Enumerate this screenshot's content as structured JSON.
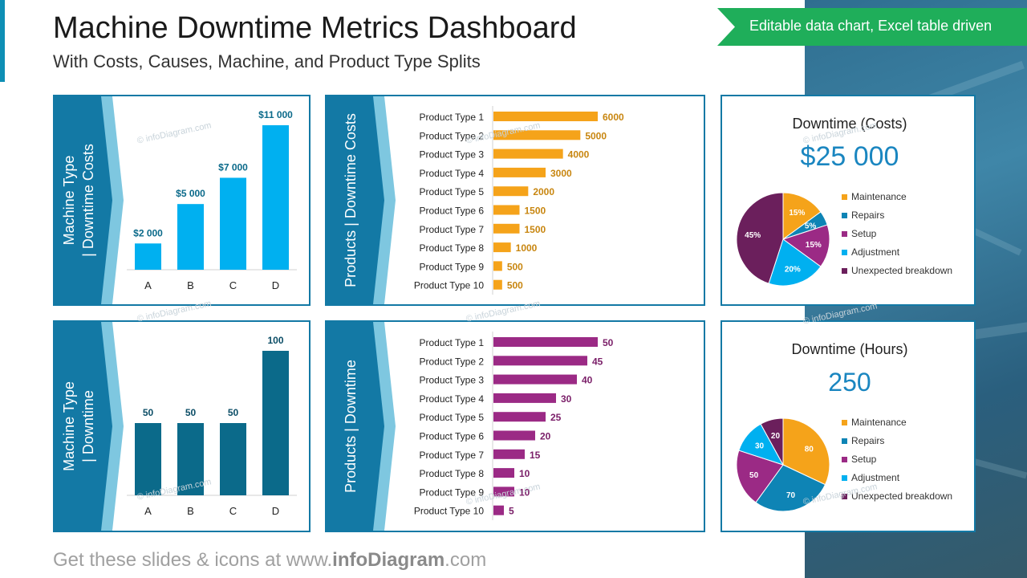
{
  "header": {
    "title": "Machine Downtime Metrics Dashboard",
    "subtitle": "With Costs, Causes, Machine, and Product Type Splits",
    "ribbon": "Editable data chart, Excel table driven"
  },
  "footer": {
    "prefix": "Get these slides & icons at www.",
    "brand": "infoDiagram",
    "suffix": ".com"
  },
  "watermark": "© infoDiagram.com",
  "colors": {
    "accent": "#1379a5",
    "side_dark": "#1379a5",
    "side_light": "#7ec7e0",
    "bar_cost_machine": "#00b0f0",
    "bar_hours_machine": "#0b6a8a",
    "bar_cost_product": "#f5a31a",
    "bar_hours_product": "#9b2a85",
    "pie": [
      "#f5a31a",
      "#0e84b5",
      "#9b2a85",
      "#00b0f0",
      "#6b1f5c"
    ]
  },
  "chart_data": [
    {
      "id": "machine_costs",
      "type": "bar",
      "side_label": [
        "Machine Type",
        "| Downtime Costs"
      ],
      "categories": [
        "A",
        "B",
        "C",
        "D"
      ],
      "values": [
        2000,
        5000,
        7000,
        11000
      ],
      "labels": [
        "$2 000",
        "$5 000",
        "$7 000",
        "$11 000"
      ],
      "ylim": [
        0,
        11000
      ]
    },
    {
      "id": "product_costs",
      "type": "bar",
      "orientation": "horizontal",
      "side_label": [
        "Products | Downtime Costs"
      ],
      "categories": [
        "Product Type 1",
        "Product Type 2",
        "Product Type 3",
        "Product Type 4",
        "Product Type 5",
        "Product Type 6",
        "Product Type 7",
        "Product Type 8",
        "Product Type 9",
        "Product Type 10"
      ],
      "values": [
        6000,
        5000,
        4000,
        3000,
        2000,
        1500,
        1500,
        1000,
        500,
        500
      ],
      "labels": [
        "6000",
        "5000",
        "4000",
        "3000",
        "2000",
        "1500",
        "1500",
        "1000",
        "500",
        "500"
      ],
      "xlim": [
        0,
        6000
      ]
    },
    {
      "id": "pie_costs",
      "type": "pie",
      "title": "Downtime  (Costs)",
      "total": "$25 000",
      "categories": [
        "Maintenance",
        "Repairs",
        "Setup",
        "Adjustment",
        "Unexpected breakdown"
      ],
      "values": [
        15,
        5,
        15,
        20,
        45
      ],
      "labels": [
        "15%",
        "5%",
        "15%",
        "20%",
        "45%"
      ]
    },
    {
      "id": "machine_hours",
      "type": "bar",
      "side_label": [
        "Machine Type",
        "| Downtime"
      ],
      "categories": [
        "A",
        "B",
        "C",
        "D"
      ],
      "values": [
        50,
        50,
        50,
        100
      ],
      "labels": [
        "50",
        "50",
        "50",
        "100"
      ],
      "ylim": [
        0,
        100
      ]
    },
    {
      "id": "product_hours",
      "type": "bar",
      "orientation": "horizontal",
      "side_label": [
        "Products | Downtime"
      ],
      "categories": [
        "Product Type 1",
        "Product Type 2",
        "Product Type 3",
        "Product Type 4",
        "Product Type 5",
        "Product Type 6",
        "Product Type 7",
        "Product Type 8",
        "Product Type 9",
        "Product Type 10"
      ],
      "values": [
        50,
        45,
        40,
        30,
        25,
        20,
        15,
        10,
        10,
        5
      ],
      "labels": [
        "50",
        "45",
        "40",
        "30",
        "25",
        "20",
        "15",
        "10",
        "10",
        "5"
      ],
      "xlim": [
        0,
        50
      ]
    },
    {
      "id": "pie_hours",
      "type": "pie",
      "title": "Downtime  (Hours)",
      "total": "250",
      "categories": [
        "Maintenance",
        "Repairs",
        "Setup",
        "Adjustment",
        "Unexpected breakdown"
      ],
      "values": [
        80,
        70,
        50,
        30,
        20
      ],
      "labels": [
        "80",
        "70",
        "50",
        "30",
        "20"
      ]
    }
  ]
}
